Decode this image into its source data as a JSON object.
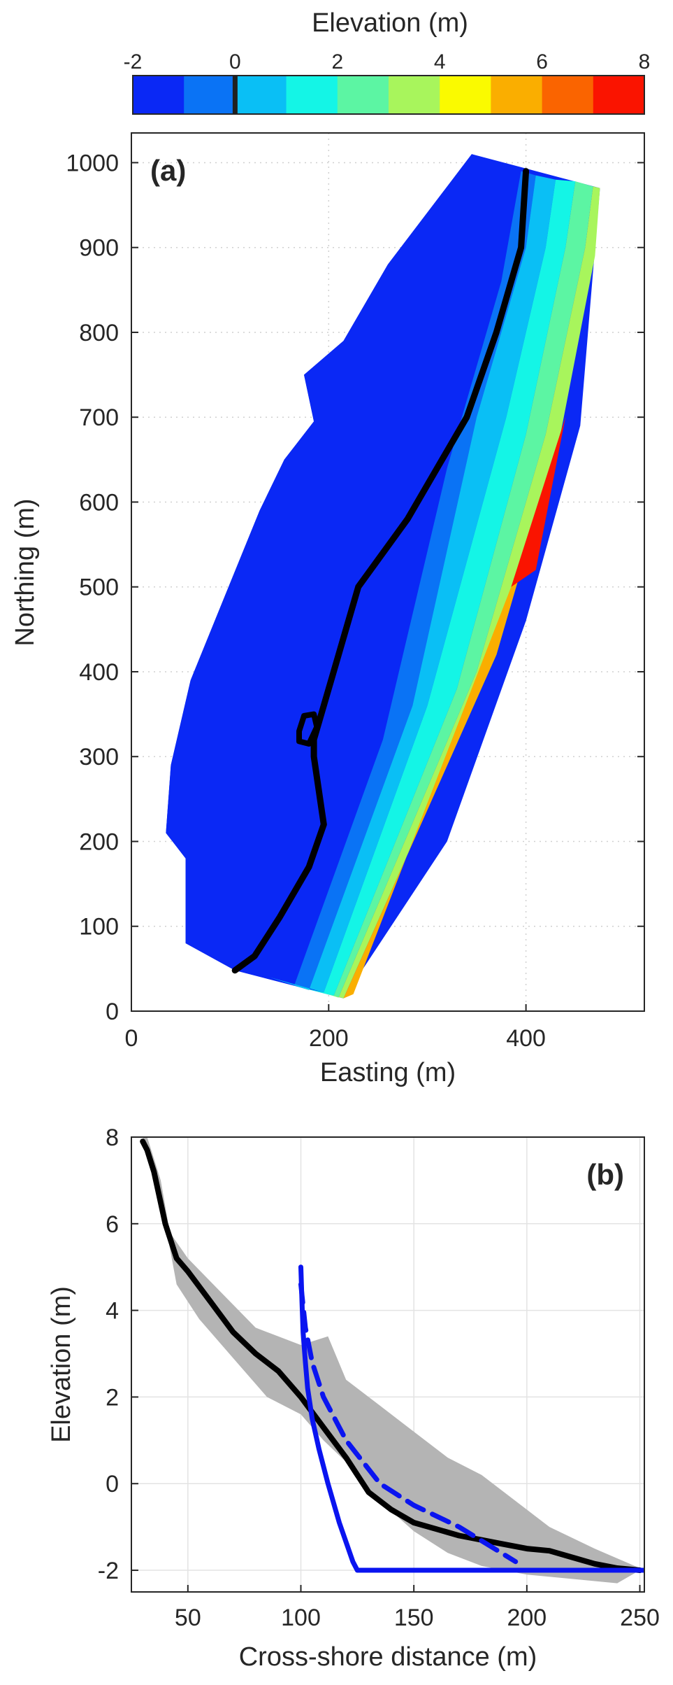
{
  "colorbar": {
    "label": "Elevation (m)",
    "ticks": [
      -2,
      0,
      2,
      4,
      6,
      8
    ],
    "colors": [
      "#0a28f5",
      "#0a73f5",
      "#0abff5",
      "#14f5e6",
      "#5cf5a3",
      "#a8f55c",
      "#fafa00",
      "#faae00",
      "#fa6400",
      "#fa1400"
    ],
    "zero_marker": 0
  },
  "chart_data": [
    {
      "type": "heatmap",
      "panel_label": "(a)",
      "xlabel": "Easting (m)",
      "ylabel": "Northing (m)",
      "xlim": [
        0,
        520
      ],
      "ylim": [
        0,
        1035
      ],
      "xticks": [
        0,
        200,
        400
      ],
      "yticks": [
        0,
        100,
        200,
        300,
        400,
        500,
        600,
        700,
        800,
        900,
        1000
      ],
      "grid": true,
      "domain_outline": [
        [
          105,
          48
        ],
        [
          215,
          15
        ],
        [
          320,
          200
        ],
        [
          400,
          460
        ],
        [
          455,
          690
        ],
        [
          475,
          970
        ],
        [
          345,
          1010
        ],
        [
          260,
          880
        ],
        [
          215,
          790
        ],
        [
          175,
          750
        ],
        [
          185,
          695
        ],
        [
          155,
          650
        ],
        [
          130,
          590
        ],
        [
          95,
          490
        ],
        [
          60,
          390
        ],
        [
          40,
          290
        ],
        [
          35,
          210
        ],
        [
          55,
          180
        ],
        [
          55,
          80
        ]
      ],
      "bands": [
        {
          "level": -2,
          "points": [
            [
              105,
              48
            ],
            [
              165,
              30
            ],
            [
              255,
              320
            ],
            [
              320,
              640
            ],
            [
              375,
              860
            ],
            [
              395,
              990
            ],
            [
              345,
              1010
            ],
            [
              260,
              880
            ],
            [
              215,
              790
            ],
            [
              175,
              750
            ],
            [
              185,
              695
            ],
            [
              155,
              650
            ],
            [
              130,
              590
            ],
            [
              95,
              490
            ],
            [
              60,
              390
            ],
            [
              40,
              290
            ],
            [
              35,
              210
            ],
            [
              55,
              180
            ],
            [
              55,
              80
            ]
          ]
        },
        {
          "level": -1,
          "points": [
            [
              120,
              45
            ],
            [
              180,
              25
            ],
            [
              285,
              360
            ],
            [
              350,
              700
            ],
            [
              400,
              900
            ],
            [
              410,
              985
            ],
            [
              395,
              990
            ],
            [
              375,
              860
            ],
            [
              320,
              640
            ],
            [
              255,
              320
            ],
            [
              165,
              30
            ]
          ]
        },
        {
          "level": 0,
          "points": [
            [
              140,
              40
            ],
            [
              195,
              22
            ],
            [
              300,
              360
            ],
            [
              380,
              700
            ],
            [
              420,
              900
            ],
            [
              430,
              980
            ],
            [
              410,
              985
            ],
            [
              400,
              900
            ],
            [
              350,
              700
            ],
            [
              285,
              360
            ],
            [
              180,
              25
            ]
          ]
        },
        {
          "level": 1,
          "points": [
            [
              165,
              30
            ],
            [
              205,
              18
            ],
            [
              330,
              380
            ],
            [
              400,
              680
            ],
            [
              440,
              900
            ],
            [
              450,
              978
            ],
            [
              430,
              980
            ],
            [
              420,
              900
            ],
            [
              380,
              700
            ],
            [
              300,
              360
            ],
            [
              195,
              22
            ]
          ]
        },
        {
          "level": 2,
          "points": [
            [
              185,
              25
            ],
            [
              210,
              16
            ],
            [
              350,
              400
            ],
            [
              420,
              680
            ],
            [
              460,
              900
            ],
            [
              468,
              972
            ],
            [
              450,
              978
            ],
            [
              440,
              900
            ],
            [
              400,
              680
            ],
            [
              330,
              380
            ],
            [
              205,
              18
            ]
          ]
        },
        {
          "level": 3,
          "points": [
            [
              200,
              20
            ],
            [
              215,
              15
            ],
            [
              370,
              420
            ],
            [
              435,
              680
            ],
            [
              470,
              890
            ],
            [
              475,
              970
            ],
            [
              468,
              972
            ],
            [
              460,
              900
            ],
            [
              420,
              680
            ],
            [
              350,
              400
            ],
            [
              210,
              16
            ]
          ]
        },
        {
          "level": 5,
          "points": [
            [
              215,
              15
            ],
            [
              225,
              20
            ],
            [
              385,
              500
            ],
            [
              425,
              620
            ],
            [
              440,
              700
            ],
            [
              435,
              680
            ],
            [
              370,
              420
            ]
          ]
        },
        {
          "level": 7,
          "points": [
            [
              385,
              500
            ],
            [
              410,
              520
            ],
            [
              440,
              700
            ]
          ]
        }
      ],
      "zero_contour": [
        [
          105,
          48
        ],
        [
          125,
          65
        ],
        [
          150,
          110
        ],
        [
          180,
          170
        ],
        [
          195,
          220
        ],
        [
          190,
          260
        ],
        [
          185,
          300
        ],
        [
          185,
          320
        ],
        [
          205,
          400
        ],
        [
          230,
          500
        ],
        [
          280,
          580
        ],
        [
          315,
          650
        ],
        [
          340,
          700
        ],
        [
          370,
          800
        ],
        [
          395,
          900
        ],
        [
          400,
          990
        ]
      ],
      "zero_contour_loop": [
        [
          170,
          330
        ],
        [
          175,
          348
        ],
        [
          185,
          350
        ],
        [
          188,
          335
        ],
        [
          180,
          315
        ],
        [
          170,
          318
        ]
      ]
    },
    {
      "type": "line",
      "panel_label": "(b)",
      "xlabel": "Cross-shore distance (m)",
      "ylabel": "Elevation (m)",
      "xlim": [
        25,
        252
      ],
      "ylim": [
        -2.5,
        8
      ],
      "xticks": [
        50,
        100,
        150,
        200,
        250
      ],
      "yticks": [
        -2,
        0,
        2,
        4,
        6,
        8
      ],
      "grid": true,
      "envelope": {
        "upper": [
          [
            32,
            8
          ],
          [
            38,
            7
          ],
          [
            42,
            5.8
          ],
          [
            50,
            5.2
          ],
          [
            65,
            4.4
          ],
          [
            80,
            3.6
          ],
          [
            100,
            3.2
          ],
          [
            112,
            3.4
          ],
          [
            120,
            2.4
          ],
          [
            135,
            1.8
          ],
          [
            150,
            1.2
          ],
          [
            165,
            0.6
          ],
          [
            180,
            0.2
          ],
          [
            195,
            -0.4
          ],
          [
            210,
            -1.0
          ],
          [
            230,
            -1.5
          ],
          [
            250,
            -1.95
          ]
        ],
        "lower": [
          [
            250,
            -2.0
          ],
          [
            240,
            -2.3
          ],
          [
            220,
            -2.2
          ],
          [
            200,
            -2.1
          ],
          [
            180,
            -1.9
          ],
          [
            165,
            -1.6
          ],
          [
            150,
            -1.1
          ],
          [
            135,
            -0.4
          ],
          [
            120,
            0.5
          ],
          [
            110,
            1.0
          ],
          [
            100,
            1.6
          ],
          [
            85,
            2.0
          ],
          [
            70,
            2.9
          ],
          [
            55,
            3.8
          ],
          [
            45,
            4.6
          ],
          [
            40,
            6.0
          ],
          [
            35,
            7.0
          ],
          [
            30,
            8
          ]
        ]
      },
      "series": [
        {
          "style": "mean",
          "color": "#000000",
          "x": [
            30,
            32,
            35,
            40,
            45,
            50,
            60,
            70,
            80,
            90,
            100,
            110,
            120,
            130,
            140,
            150,
            160,
            170,
            180,
            190,
            200,
            210,
            220,
            230,
            240,
            250
          ],
          "y": [
            7.9,
            7.7,
            7.2,
            6.0,
            5.2,
            4.9,
            4.2,
            3.5,
            3.0,
            2.6,
            2.0,
            1.3,
            0.6,
            -0.2,
            -0.6,
            -0.9,
            -1.05,
            -1.2,
            -1.3,
            -1.4,
            -1.5,
            -1.55,
            -1.7,
            -1.85,
            -1.95,
            -2.0
          ]
        },
        {
          "style": "equilibrium",
          "color": "#0a14f0",
          "x": [
            100,
            100.5,
            101,
            102,
            103,
            105,
            108,
            112,
            117,
            123,
            125,
            150,
            200,
            252
          ],
          "y": [
            5.0,
            4.2,
            3.5,
            2.8,
            2.2,
            1.5,
            0.8,
            0.0,
            -0.9,
            -1.8,
            -2.0,
            -2.0,
            -2.0,
            -2.0
          ]
        },
        {
          "style": "dashed",
          "color": "#0a14f0",
          "dash": true,
          "x": [
            100,
            102,
            105,
            110,
            120,
            135,
            150,
            170,
            195
          ],
          "y": [
            4.6,
            3.6,
            2.8,
            2.0,
            1.0,
            0.0,
            -0.5,
            -1.0,
            -1.8
          ]
        }
      ]
    }
  ]
}
